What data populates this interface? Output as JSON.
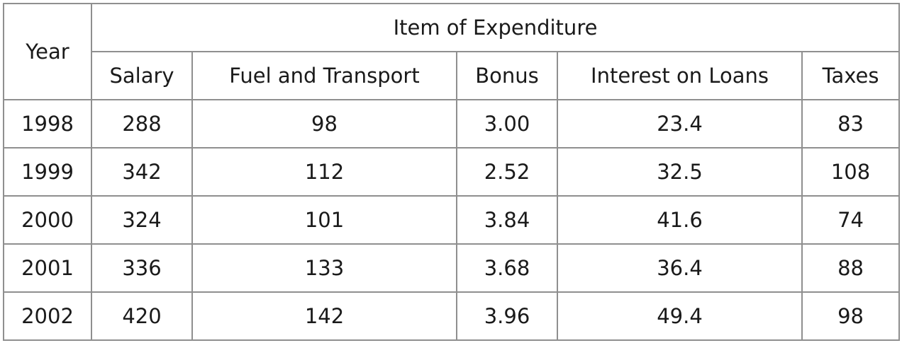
{
  "table": {
    "year_header": "Year",
    "group_header": "Item of Expenditure",
    "columns": [
      "Salary",
      "Fuel and Transport",
      "Bonus",
      "Interest on Loans",
      "Taxes"
    ],
    "rows": [
      {
        "year": "1998",
        "values": [
          "288",
          "98",
          "3.00",
          "23.4",
          "83"
        ]
      },
      {
        "year": "1999",
        "values": [
          "342",
          "112",
          "2.52",
          "32.5",
          "108"
        ]
      },
      {
        "year": "2000",
        "values": [
          "324",
          "101",
          "3.84",
          "41.6",
          "74"
        ]
      },
      {
        "year": "2001",
        "values": [
          "336",
          "133",
          "3.68",
          "36.4",
          "88"
        ]
      },
      {
        "year": "2002",
        "values": [
          "420",
          "142",
          "3.96",
          "49.4",
          "98"
        ]
      }
    ]
  }
}
